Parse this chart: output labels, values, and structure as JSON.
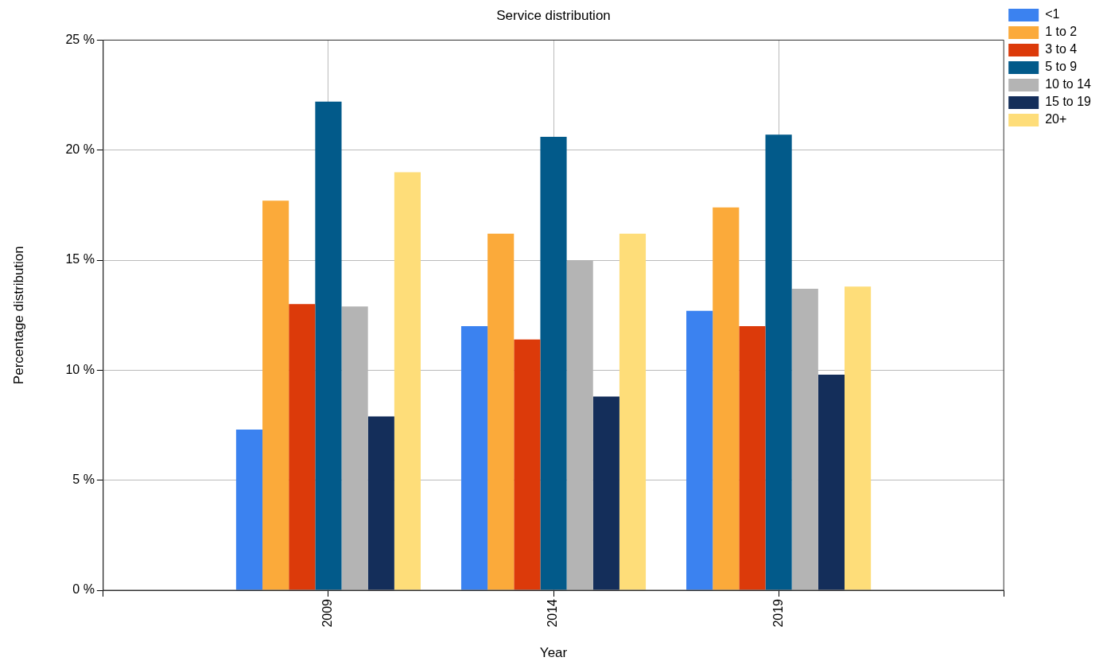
{
  "chart_data": {
    "type": "bar",
    "title": "Service distribution",
    "xlabel": "Year",
    "ylabel": "Percentage distribution",
    "x": [
      2009,
      2014,
      2019
    ],
    "xlim": [
      2004,
      2024
    ],
    "xticks": [
      {
        "value": 2004,
        "label": null
      },
      2009,
      2014,
      2019,
      {
        "value": 2024,
        "label": null
      }
    ],
    "ylim": [
      0,
      25
    ],
    "yticks": [
      {
        "value": 0,
        "label": "0 %"
      },
      {
        "value": 5,
        "label": "5 %"
      },
      {
        "value": 10,
        "label": "10 %"
      },
      {
        "value": 15,
        "label": "15 %"
      },
      {
        "value": 20,
        "label": "20 %"
      },
      {
        "value": 25,
        "label": "25 %"
      }
    ],
    "grid": true,
    "legend": "top right",
    "series": [
      {
        "name": "<1",
        "color": "#3b82f0",
        "values": [
          7.3,
          12.0,
          12.7
        ]
      },
      {
        "name": "1 to 2",
        "color": "#fbaa3a",
        "values": [
          17.7,
          16.2,
          17.4
        ]
      },
      {
        "name": "3 to 4",
        "color": "#dc3a0a",
        "values": [
          13.0,
          11.4,
          12.0
        ]
      },
      {
        "name": "5 to 9",
        "color": "#025a8a",
        "values": [
          22.2,
          20.6,
          20.7
        ]
      },
      {
        "name": "10 to 14",
        "color": "#b4b4b4",
        "values": [
          12.9,
          15.0,
          13.7
        ]
      },
      {
        "name": "15 to 19",
        "color": "#142e5a",
        "values": [
          7.9,
          8.8,
          9.8
        ]
      },
      {
        "name": "20+",
        "color": "#fedd79",
        "values": [
          19.0,
          16.2,
          13.8
        ]
      }
    ]
  }
}
